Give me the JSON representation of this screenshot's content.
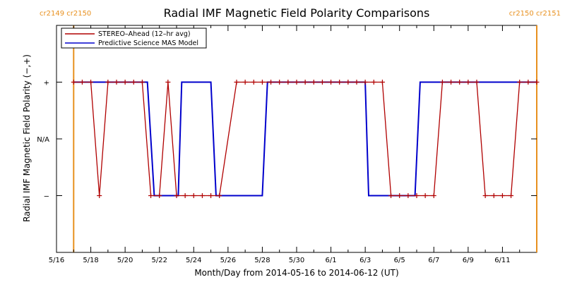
{
  "chart_data": {
    "type": "line",
    "title": "Radial IMF Magnetic Field Polarity Comparisons",
    "xlabel": "Month/Day from 2014-05-16 to 2014-06-12 (UT)",
    "ylabel": "Radial IMF Magnetic Field Polarity (−,+)",
    "x_unit": "days since 2014-05-16 00:00 UT",
    "xlim": [
      0,
      28
    ],
    "ylim": [
      -2,
      2
    ],
    "x_ticks": [
      {
        "x": 0,
        "label": "5/16"
      },
      {
        "x": 2,
        "label": "5/18"
      },
      {
        "x": 4,
        "label": "5/20"
      },
      {
        "x": 6,
        "label": "5/22"
      },
      {
        "x": 8,
        "label": "5/24"
      },
      {
        "x": 10,
        "label": "5/26"
      },
      {
        "x": 12,
        "label": "5/28"
      },
      {
        "x": 14,
        "label": "5/30"
      },
      {
        "x": 16,
        "label": "6/1"
      },
      {
        "x": 18,
        "label": "6/3"
      },
      {
        "x": 20,
        "label": "6/5"
      },
      {
        "x": 22,
        "label": "6/7"
      },
      {
        "x": 24,
        "label": "6/9"
      },
      {
        "x": 26,
        "label": "6/11"
      }
    ],
    "y_ticks": [
      {
        "y": 1,
        "label": "+"
      },
      {
        "y": 0,
        "label": "N/A"
      },
      {
        "y": -1,
        "label": "−"
      }
    ],
    "carrington": [
      {
        "x": 1.0,
        "label": "cr2149 cr2150",
        "side": "left"
      },
      {
        "x": 28.0,
        "label": "cr2150 cr2151",
        "side": "right"
      }
    ],
    "legend": {
      "position": "top-left"
    },
    "series": [
      {
        "name": "STEREO–Ahead (12–hr avg)",
        "color": "#b00000",
        "markers": true,
        "points": [
          [
            1.0,
            1
          ],
          [
            1.5,
            1
          ],
          [
            2.0,
            1
          ],
          [
            2.5,
            -1
          ],
          [
            3.0,
            1
          ],
          [
            3.5,
            1
          ],
          [
            4.0,
            1
          ],
          [
            4.5,
            1
          ],
          [
            5.0,
            1
          ],
          [
            5.5,
            -1
          ],
          [
            6.0,
            -1
          ],
          [
            6.5,
            1
          ],
          [
            7.0,
            -1
          ],
          [
            7.5,
            -1
          ],
          [
            8.0,
            -1
          ],
          [
            8.5,
            -1
          ],
          [
            9.0,
            -1
          ],
          [
            9.5,
            -1
          ],
          [
            10.5,
            1
          ],
          [
            11.0,
            1
          ],
          [
            11.5,
            1
          ],
          [
            12.0,
            1
          ],
          [
            12.5,
            1
          ],
          [
            13.0,
            1
          ],
          [
            13.5,
            1
          ],
          [
            14.0,
            1
          ],
          [
            14.5,
            1
          ],
          [
            15.0,
            1
          ],
          [
            15.5,
            1
          ],
          [
            16.0,
            1
          ],
          [
            16.5,
            1
          ],
          [
            17.0,
            1
          ],
          [
            17.5,
            1
          ],
          [
            18.0,
            1
          ],
          [
            18.5,
            1
          ],
          [
            19.0,
            1
          ],
          [
            19.5,
            -1
          ],
          [
            20.0,
            -1
          ],
          [
            20.5,
            -1
          ],
          [
            21.0,
            -1
          ],
          [
            21.5,
            -1
          ],
          [
            22.0,
            -1
          ],
          [
            22.5,
            1
          ],
          [
            23.0,
            1
          ],
          [
            23.5,
            1
          ],
          [
            24.0,
            1
          ],
          [
            24.5,
            1
          ],
          [
            25.0,
            -1
          ],
          [
            25.5,
            -1
          ],
          [
            26.0,
            -1
          ],
          [
            26.5,
            -1
          ],
          [
            27.0,
            1
          ],
          [
            27.5,
            1
          ],
          [
            28.0,
            1
          ]
        ]
      },
      {
        "name": "Predictive Science MAS Model",
        "color": "#0000cc",
        "markers": false,
        "points": [
          [
            1.0,
            1
          ],
          [
            5.3,
            1
          ],
          [
            5.7,
            -1
          ],
          [
            7.1,
            -1
          ],
          [
            7.3,
            1
          ],
          [
            9.0,
            1
          ],
          [
            9.3,
            -1
          ],
          [
            12.0,
            -1
          ],
          [
            12.3,
            1
          ],
          [
            18.0,
            1
          ],
          [
            18.2,
            -1
          ],
          [
            20.9,
            -1
          ],
          [
            21.2,
            1
          ],
          [
            28.0,
            1
          ]
        ]
      }
    ]
  }
}
